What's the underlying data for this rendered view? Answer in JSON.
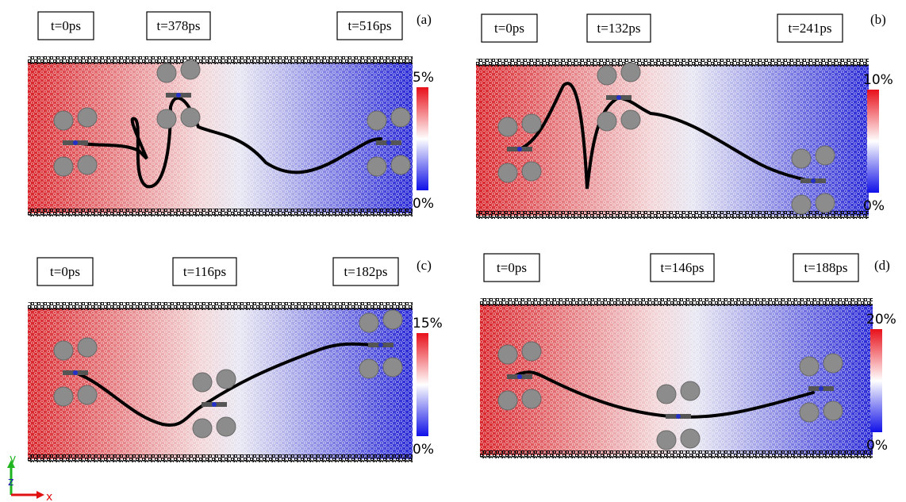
{
  "panels": [
    {
      "label": "(a)",
      "times": [
        "t=0ps",
        "t=378ps",
        "t=516ps"
      ],
      "colorbar": {
        "max": "5%",
        "min": "0%"
      }
    },
    {
      "label": "(b)",
      "times": [
        "t=0ps",
        "t=132ps",
        "t=241ps"
      ],
      "colorbar": {
        "max": "10%",
        "min": "0%"
      }
    },
    {
      "label": "(c)",
      "times": [
        "t=0ps",
        "t=116ps",
        "t=182ps"
      ],
      "colorbar": {
        "max": "15%",
        "min": "0%"
      }
    },
    {
      "label": "(d)",
      "times": [
        "t=0ps",
        "t=146ps",
        "t=188ps"
      ],
      "colorbar": {
        "max": "20%",
        "min": "0%"
      }
    }
  ],
  "axes": {
    "y": "y",
    "z": "z",
    "x": "x"
  }
}
